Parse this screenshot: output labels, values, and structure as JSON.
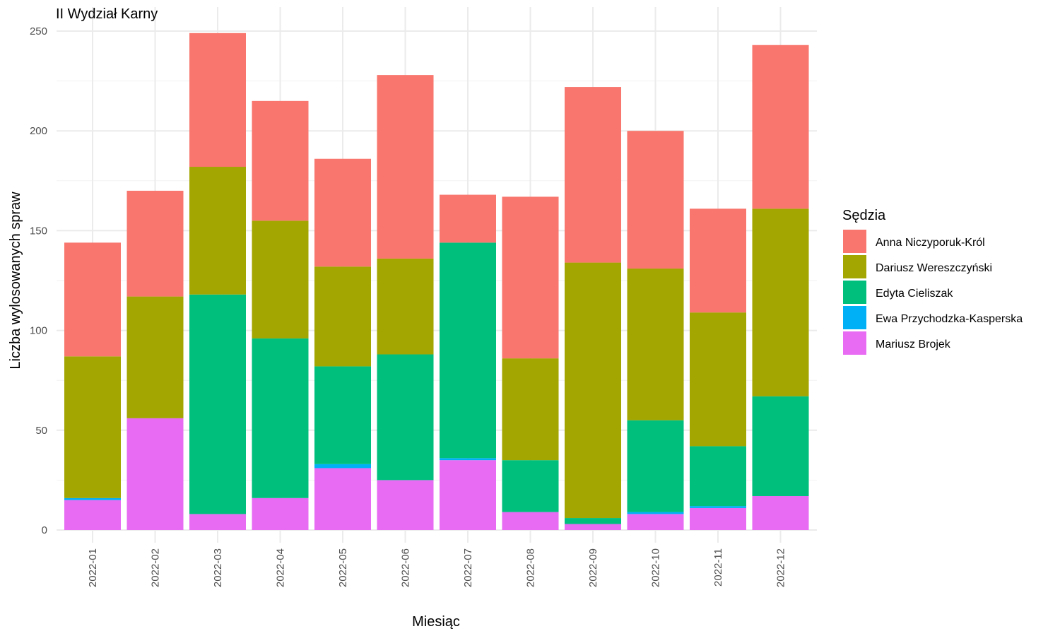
{
  "chart_data": {
    "type": "bar",
    "stacked": true,
    "title": "II Wydział Karny",
    "xlabel": "Miesiąc",
    "ylabel": "Liczba wylosowanych spraw",
    "ylim": [
      0,
      250
    ],
    "yticks": [
      "0",
      "50",
      "100",
      "150",
      "200",
      "250"
    ],
    "grid": true,
    "legend_position": "right",
    "legend_title": "Sędzia",
    "categories": [
      "2022-01",
      "2022-02",
      "2022-03",
      "2022-04",
      "2022-05",
      "2022-06",
      "2022-07",
      "2022-08",
      "2022-09",
      "2022-10",
      "2022-11",
      "2022-12"
    ],
    "series": [
      {
        "name": "Mariusz Brojek",
        "color": "#E76BF3",
        "values": [
          15,
          56,
          8,
          16,
          31,
          25,
          35,
          9,
          3,
          8,
          11,
          17
        ]
      },
      {
        "name": "Ewa Przychodzka-Kasperska",
        "color": "#00B0F6",
        "values": [
          1,
          0,
          0,
          0,
          2,
          0,
          1,
          0,
          0,
          1,
          1,
          0
        ]
      },
      {
        "name": "Edyta Cieliszak",
        "color": "#00BF7D",
        "values": [
          0,
          0,
          110,
          80,
          49,
          63,
          108,
          26,
          3,
          46,
          30,
          50
        ]
      },
      {
        "name": "Dariusz Wereszczyński",
        "color": "#A3A500",
        "values": [
          71,
          61,
          64,
          59,
          50,
          48,
          0,
          51,
          128,
          76,
          67,
          94
        ]
      },
      {
        "name": "Anna Niczyporuk-Król",
        "color": "#F8766D",
        "values": [
          57,
          53,
          67,
          60,
          54,
          92,
          24,
          81,
          88,
          69,
          52,
          82
        ]
      }
    ],
    "legend_order": [
      "Anna Niczyporuk-Król",
      "Dariusz Wereszczyński",
      "Edyta Cieliszak",
      "Ewa Przychodzka-Kasperska",
      "Mariusz Brojek"
    ]
  }
}
